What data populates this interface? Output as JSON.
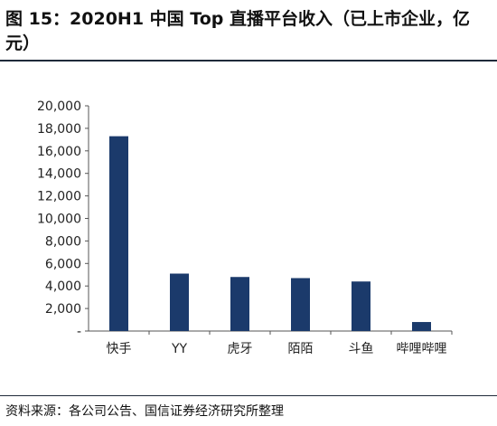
{
  "title": "图 15：2020H1 中国 Top 直播平台收入（已上市企业，亿元）",
  "source": "资料来源：各公司公告、国信证券经济研究所整理",
  "chart_data": {
    "type": "bar",
    "title": "图 15：2020H1 中国 Top 直播平台收入（已上市企业，亿元）",
    "xlabel": "",
    "ylabel": "",
    "categories": [
      "快手",
      "YY",
      "虎牙",
      "陌陌",
      "斗鱼",
      "哔哩哔哩"
    ],
    "values": [
      17300,
      5100,
      4800,
      4700,
      4400,
      800
    ],
    "ylim": [
      0,
      20000
    ],
    "yticks": [
      0,
      2000,
      4000,
      6000,
      8000,
      10000,
      12000,
      14000,
      16000,
      18000,
      20000
    ],
    "ytick_labels": [
      "-",
      "2,000",
      "4,000",
      "6,000",
      "8,000",
      "10,000",
      "12,000",
      "14,000",
      "16,000",
      "18,000",
      "20,000"
    ],
    "bar_color": "#1b3a6b",
    "grid": false,
    "legend": "none"
  }
}
